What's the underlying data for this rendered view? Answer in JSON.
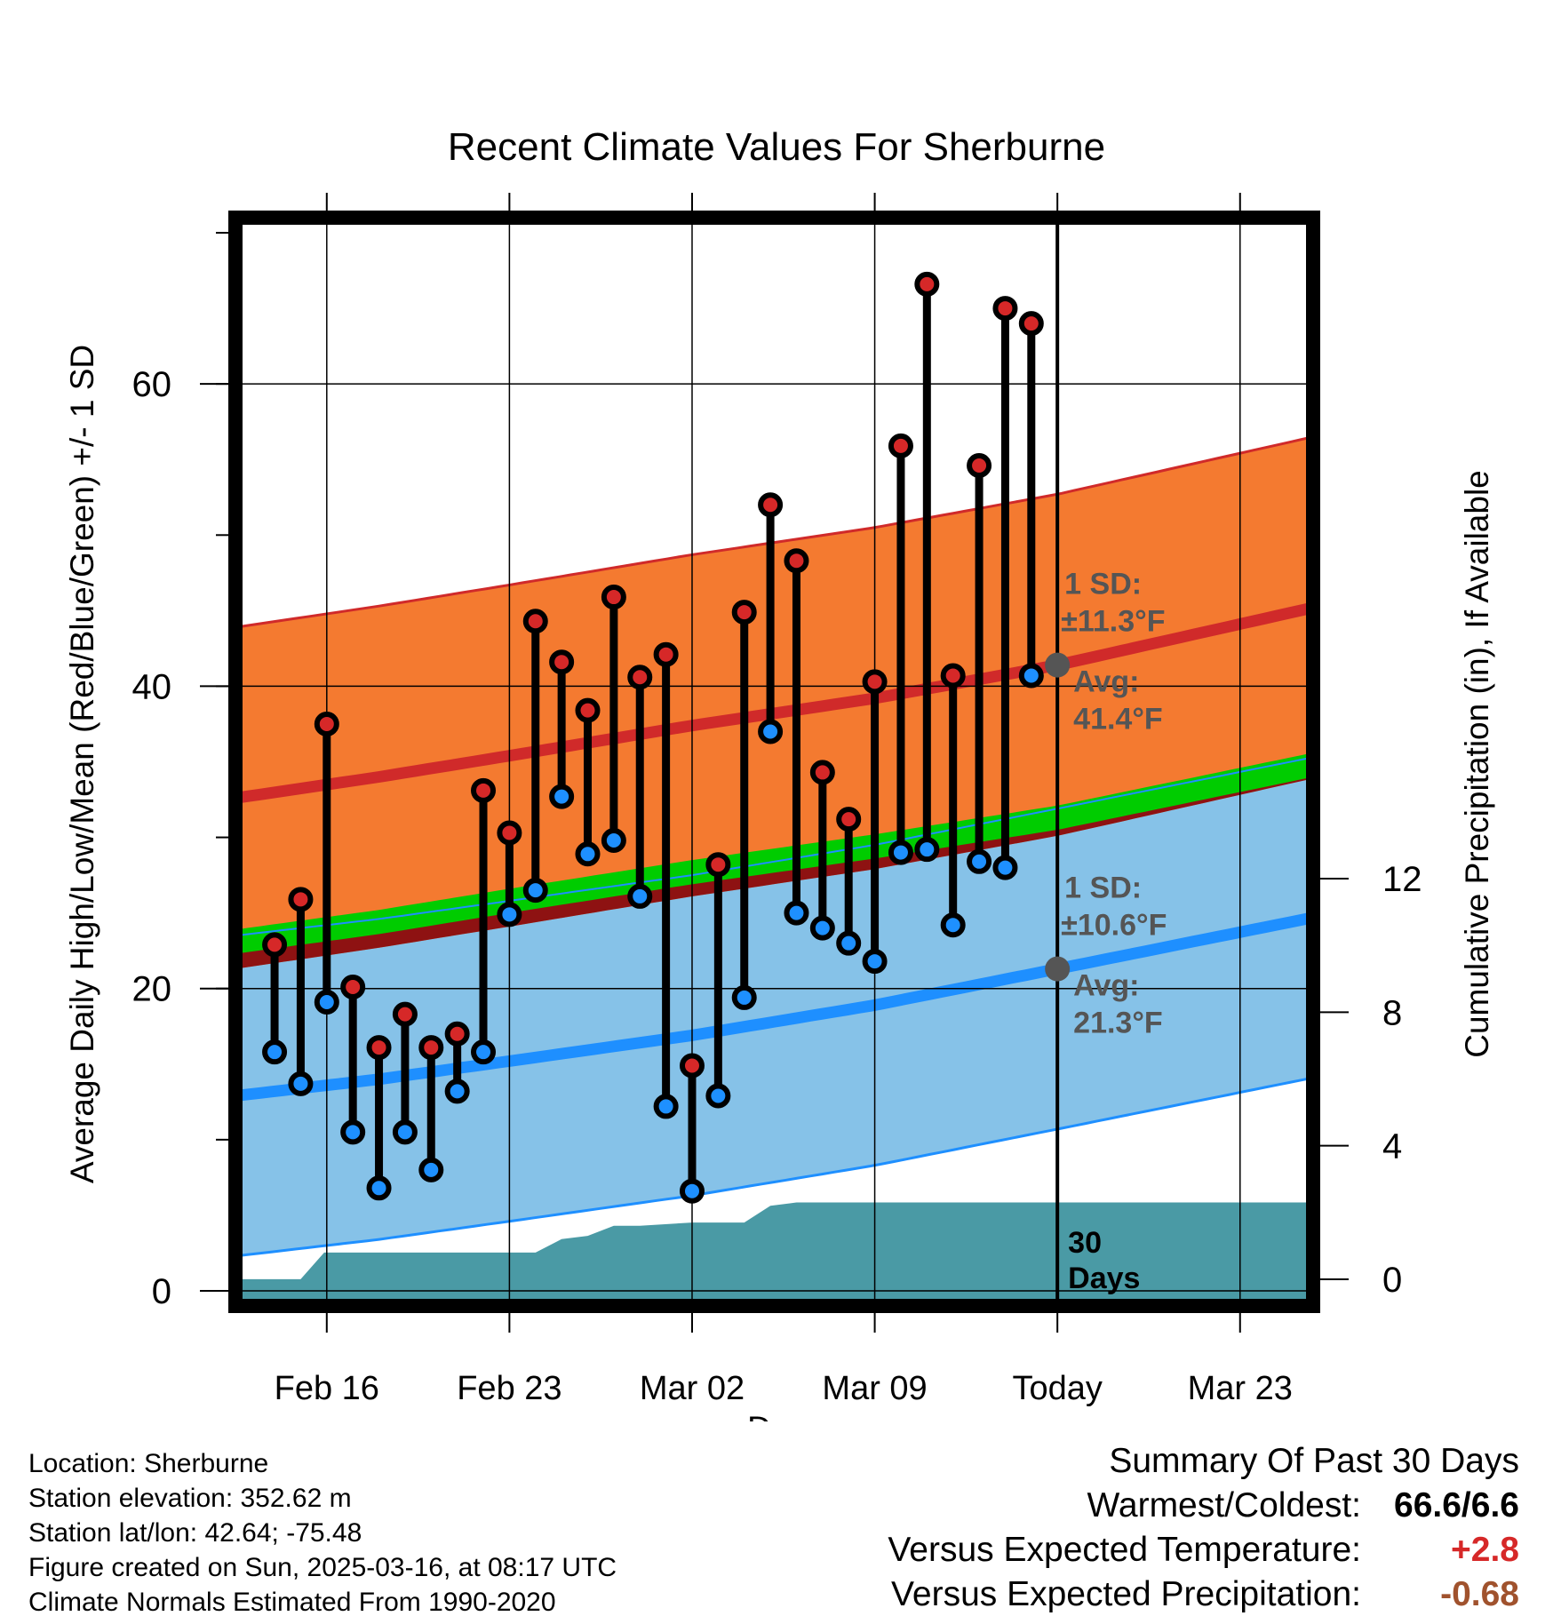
{
  "chart_data": {
    "type": "line",
    "title": "Recent Climate Values For Sherburne",
    "xlabel": "Day",
    "ylabel": "Average Daily High/Low/Mean (Red/Blue/Green) +/- 1 SD",
    "y2label": "Cumulative Precipitation (in), If Available",
    "xlim": [
      -3.5,
      37.8
    ],
    "ylim": [
      -1,
      71
    ],
    "y2lim": [
      -0.8,
      31.8
    ],
    "x_tick_labels": [
      {
        "x": 0,
        "label": "Feb 16"
      },
      {
        "x": 7,
        "label": "Feb 23"
      },
      {
        "x": 14,
        "label": "Mar 02"
      },
      {
        "x": 21,
        "label": "Mar 09"
      },
      {
        "x": 28,
        "label": "Today"
      },
      {
        "x": 35,
        "label": "Mar 23"
      }
    ],
    "y_ticks": [
      0,
      20,
      40,
      60
    ],
    "y2_ticks": [
      0,
      4,
      8,
      12
    ],
    "grid": true,
    "today_x": 28,
    "daily": {
      "days": [
        -2,
        -1,
        0,
        1,
        2,
        3,
        4,
        5,
        6,
        7,
        8,
        9,
        10,
        11,
        12,
        13,
        14,
        15,
        16,
        17,
        18,
        19,
        20,
        21,
        22,
        23,
        24,
        25,
        26,
        27
      ],
      "high": [
        22.9,
        25.9,
        37.5,
        20.1,
        16.1,
        18.3,
        16.1,
        17.0,
        33.1,
        30.3,
        44.3,
        41.6,
        38.4,
        45.9,
        40.6,
        42.1,
        14.9,
        28.2,
        44.9,
        52.0,
        48.3,
        34.3,
        31.2,
        40.3,
        55.9,
        66.6,
        40.7,
        54.6,
        65.0,
        64.0
      ],
      "low": [
        15.8,
        13.7,
        19.1,
        10.5,
        6.8,
        10.5,
        8.0,
        13.2,
        15.8,
        24.9,
        26.5,
        32.7,
        28.9,
        29.8,
        26.1,
        12.2,
        6.6,
        12.9,
        19.4,
        37.0,
        25.0,
        24.0,
        23.0,
        21.8,
        29.0,
        29.2,
        24.2,
        28.4,
        28.0,
        40.7
      ]
    },
    "normals": {
      "x": [
        -3.5,
        2,
        7,
        14,
        21,
        28,
        37.8
      ],
      "high_mean": [
        32.6,
        34.0,
        35.4,
        37.4,
        39.2,
        41.4,
        45.2
      ],
      "high_sd": 11.3,
      "low_mean": [
        12.9,
        14.0,
        15.2,
        16.9,
        18.9,
        21.3,
        24.7
      ],
      "low_sd": 10.6,
      "mean_normal": [
        23.3,
        24.6,
        26.0,
        27.9,
        29.6,
        31.5,
        35.0
      ]
    },
    "precip_cumulative": {
      "x": [
        -3.5,
        -2,
        -1,
        -0.1,
        0.8,
        4,
        8,
        9,
        10,
        11,
        12,
        14,
        16,
        17,
        18,
        21,
        28,
        37.8
      ],
      "y": [
        0,
        0,
        0,
        0.8,
        0.8,
        0.8,
        0.8,
        1.2,
        1.3,
        1.6,
        1.6,
        1.7,
        1.7,
        2.2,
        2.3,
        2.3,
        2.3,
        2.3
      ]
    },
    "annotations": {
      "high_sd": "1 SD:",
      "high_sd_value": "±11.3°F",
      "high_avg": "Avg:",
      "high_avg_value": "41.4°F",
      "low_sd": "1 SD:",
      "low_sd_value": "±10.6°F",
      "low_avg": "Avg:",
      "low_avg_value": "21.3°F",
      "precip_period": "30",
      "precip_period_unit": "Days"
    },
    "colors": {
      "high_band": "#f47a30",
      "high_line": "#d02a2a",
      "low_band": "#86c2e8",
      "low_line": "#1e8fff",
      "mean_band": "#00cc00",
      "overlap": "#8e1212",
      "precip": "#4a9aa5",
      "high_dot": "#d62828",
      "low_dot": "#1e90ff",
      "annotation": "#555555"
    }
  },
  "footer": {
    "location": "Location: Sherburne",
    "elevation": "Station elevation: 352.62 m",
    "latlon": "Station lat/lon: 42.64; -75.48",
    "created": "Figure created on Sun, 2025-03-16, at 08:17 UTC",
    "normals": "Climate Normals Estimated From 1990-2020"
  },
  "summary": {
    "title": "Summary Of Past 30 Days",
    "warm_cold_label": "Warmest/Coldest:",
    "warm_cold_value": "66.6/6.6",
    "temp_label": "Versus Expected Temperature:",
    "temp_value": "+2.8",
    "temp_color": "#d62828",
    "precip_label": "Versus Expected Precipitation:",
    "precip_value": "-0.68",
    "precip_color": "#a0522d"
  }
}
